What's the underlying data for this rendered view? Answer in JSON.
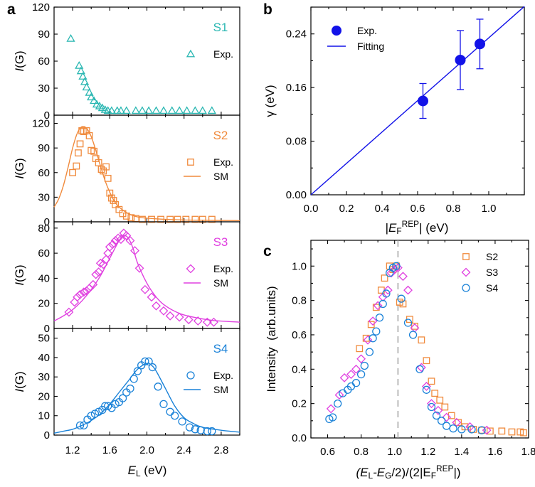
{
  "chart_data": [
    {
      "panel": "a",
      "panel_label": "a",
      "type": "scatter",
      "sample": "S1",
      "label": "S1",
      "label_color": "#2ab7b2",
      "xlabel_main": "E",
      "xlabel_sub": "L",
      "xlabel_unit": " (eV)",
      "ylabel_italic": "I",
      "ylabel_rest": "(G)",
      "xlim": [
        1.0,
        3.0
      ],
      "ylim": [
        0,
        120
      ],
      "yticks": [
        "0",
        "30",
        "60",
        "90",
        "120"
      ],
      "xticks": [
        "1.2",
        "1.6",
        "2.0",
        "2.4",
        "2.8"
      ],
      "legend": [
        "Exp."
      ],
      "marker": "triangle",
      "color": "#2ab7b2",
      "exp": [
        [
          1.18,
          85
        ],
        [
          1.27,
          55
        ],
        [
          1.29,
          49
        ],
        [
          1.31,
          43
        ],
        [
          1.33,
          37
        ],
        [
          1.35,
          31
        ],
        [
          1.38,
          25
        ],
        [
          1.4,
          20
        ],
        [
          1.43,
          16
        ],
        [
          1.46,
          12
        ],
        [
          1.49,
          10
        ],
        [
          1.52,
          8
        ],
        [
          1.55,
          6
        ],
        [
          1.58,
          5
        ],
        [
          1.62,
          5
        ],
        [
          1.68,
          5
        ],
        [
          1.72,
          5
        ],
        [
          1.78,
          5
        ],
        [
          1.88,
          5
        ],
        [
          1.95,
          5
        ],
        [
          2.02,
          5
        ],
        [
          2.1,
          5
        ],
        [
          2.18,
          5
        ],
        [
          2.27,
          5
        ],
        [
          2.35,
          5
        ],
        [
          2.43,
          5
        ],
        [
          2.52,
          5
        ],
        [
          2.6,
          5
        ],
        [
          2.7,
          5
        ]
      ],
      "sm": []
    },
    {
      "panel": "a",
      "type": "scatter",
      "sample": "S2",
      "label": "S2",
      "label_color": "#f08a3c",
      "xlim": [
        1.0,
        3.0
      ],
      "ylim": [
        0,
        130
      ],
      "yticks": [
        "0",
        "30",
        "60",
        "90",
        "120"
      ],
      "legend": [
        "Exp.",
        "SM"
      ],
      "marker": "square",
      "color": "#f08a3c",
      "exp": [
        [
          1.2,
          60
        ],
        [
          1.24,
          68
        ],
        [
          1.26,
          84
        ],
        [
          1.28,
          95
        ],
        [
          1.3,
          111
        ],
        [
          1.32,
          110
        ],
        [
          1.35,
          111
        ],
        [
          1.38,
          105
        ],
        [
          1.4,
          87
        ],
        [
          1.43,
          86
        ],
        [
          1.45,
          77
        ],
        [
          1.48,
          72
        ],
        [
          1.51,
          64
        ],
        [
          1.53,
          62
        ],
        [
          1.56,
          67
        ],
        [
          1.58,
          53
        ],
        [
          1.6,
          35
        ],
        [
          1.62,
          29
        ],
        [
          1.64,
          26
        ],
        [
          1.66,
          21
        ],
        [
          1.7,
          15
        ],
        [
          1.74,
          10
        ],
        [
          1.78,
          7
        ],
        [
          1.83,
          5
        ],
        [
          1.88,
          4
        ],
        [
          1.95,
          3
        ],
        [
          2.05,
          3
        ],
        [
          2.15,
          3
        ],
        [
          2.25,
          3
        ],
        [
          2.33,
          3
        ],
        [
          2.42,
          3
        ],
        [
          2.52,
          3
        ],
        [
          2.6,
          3
        ],
        [
          2.7,
          3
        ]
      ],
      "sm": [
        [
          1.0,
          18
        ],
        [
          1.05,
          28
        ],
        [
          1.1,
          44
        ],
        [
          1.15,
          66
        ],
        [
          1.2,
          90
        ],
        [
          1.25,
          108
        ],
        [
          1.3,
          116
        ],
        [
          1.35,
          114
        ],
        [
          1.4,
          104
        ],
        [
          1.45,
          87
        ],
        [
          1.5,
          68
        ],
        [
          1.55,
          50
        ],
        [
          1.6,
          36
        ],
        [
          1.65,
          25
        ],
        [
          1.7,
          18
        ],
        [
          1.8,
          10
        ],
        [
          1.9,
          6
        ],
        [
          2.0,
          4.5
        ],
        [
          2.2,
          3
        ],
        [
          2.5,
          2
        ],
        [
          3.0,
          1.5
        ]
      ]
    },
    {
      "panel": "a",
      "type": "scatter",
      "sample": "S3",
      "label": "S3",
      "label_color": "#e040e0",
      "xlim": [
        1.0,
        3.0
      ],
      "ylim": [
        0,
        85
      ],
      "yticks": [
        "0",
        "20",
        "40",
        "60",
        "80"
      ],
      "legend": [
        "Exp.",
        "SM"
      ],
      "marker": "diamond",
      "color": "#e040e0",
      "exp": [
        [
          1.16,
          13
        ],
        [
          1.22,
          21
        ],
        [
          1.25,
          25
        ],
        [
          1.28,
          27
        ],
        [
          1.32,
          29
        ],
        [
          1.35,
          30
        ],
        [
          1.38,
          32
        ],
        [
          1.42,
          35
        ],
        [
          1.45,
          43
        ],
        [
          1.48,
          45
        ],
        [
          1.5,
          52
        ],
        [
          1.53,
          51
        ],
        [
          1.56,
          55
        ],
        [
          1.58,
          60
        ],
        [
          1.6,
          65
        ],
        [
          1.63,
          67
        ],
        [
          1.66,
          70
        ],
        [
          1.69,
          72
        ],
        [
          1.72,
          71
        ],
        [
          1.75,
          76
        ],
        [
          1.78,
          74
        ],
        [
          1.82,
          70
        ],
        [
          1.87,
          62
        ],
        [
          1.92,
          48
        ],
        [
          1.98,
          31
        ],
        [
          2.05,
          25
        ],
        [
          2.1,
          18
        ],
        [
          2.18,
          14
        ],
        [
          2.25,
          10
        ],
        [
          2.35,
          9
        ],
        [
          2.45,
          7
        ],
        [
          2.55,
          6
        ],
        [
          2.65,
          5
        ],
        [
          2.72,
          5
        ]
      ],
      "sm": [
        [
          1.0,
          6
        ],
        [
          1.1,
          10
        ],
        [
          1.2,
          15
        ],
        [
          1.3,
          22
        ],
        [
          1.4,
          31
        ],
        [
          1.5,
          42
        ],
        [
          1.6,
          56
        ],
        [
          1.7,
          70
        ],
        [
          1.75,
          74
        ],
        [
          1.8,
          72
        ],
        [
          1.85,
          64
        ],
        [
          1.9,
          52
        ],
        [
          2.0,
          36
        ],
        [
          2.1,
          25
        ],
        [
          2.2,
          18
        ],
        [
          2.35,
          12
        ],
        [
          2.5,
          9
        ],
        [
          2.7,
          6.5
        ],
        [
          3.0,
          5
        ]
      ]
    },
    {
      "panel": "a",
      "type": "scatter",
      "sample": "S4",
      "label": "S4",
      "label_color": "#1a82d8",
      "xlim": [
        1.0,
        3.0
      ],
      "ylim": [
        0,
        55
      ],
      "yticks": [
        "0",
        "10",
        "20",
        "30",
        "40",
        "50"
      ],
      "legend": [
        "Exp.",
        "SM"
      ],
      "marker": "circle",
      "color": "#1a82d8",
      "exp": [
        [
          1.28,
          5
        ],
        [
          1.32,
          5
        ],
        [
          1.36,
          8
        ],
        [
          1.4,
          10
        ],
        [
          1.44,
          11
        ],
        [
          1.48,
          12
        ],
        [
          1.52,
          13
        ],
        [
          1.55,
          15
        ],
        [
          1.58,
          15
        ],
        [
          1.62,
          14
        ],
        [
          1.66,
          16
        ],
        [
          1.7,
          17
        ],
        [
          1.74,
          19
        ],
        [
          1.78,
          22
        ],
        [
          1.82,
          24
        ],
        [
          1.86,
          29
        ],
        [
          1.9,
          33
        ],
        [
          1.94,
          36
        ],
        [
          1.98,
          38
        ],
        [
          2.02,
          38
        ],
        [
          2.06,
          35
        ],
        [
          2.12,
          25
        ],
        [
          2.18,
          16
        ],
        [
          2.25,
          12
        ],
        [
          2.3,
          10
        ],
        [
          2.38,
          7
        ],
        [
          2.46,
          4
        ],
        [
          2.52,
          3
        ],
        [
          2.58,
          2.5
        ],
        [
          2.65,
          2
        ],
        [
          2.7,
          2
        ]
      ],
      "sm": [
        [
          1.0,
          1
        ],
        [
          1.1,
          2
        ],
        [
          1.2,
          3
        ],
        [
          1.3,
          5
        ],
        [
          1.4,
          7.5
        ],
        [
          1.5,
          11
        ],
        [
          1.6,
          16
        ],
        [
          1.7,
          22
        ],
        [
          1.8,
          28
        ],
        [
          1.9,
          34
        ],
        [
          2.0,
          37
        ],
        [
          2.05,
          36
        ],
        [
          2.1,
          33
        ],
        [
          2.2,
          24
        ],
        [
          2.3,
          15
        ],
        [
          2.4,
          9
        ],
        [
          2.5,
          6
        ],
        [
          2.6,
          4
        ],
        [
          2.8,
          2.5
        ],
        [
          3.0,
          1.5
        ]
      ]
    },
    {
      "panel": "b",
      "panel_label": "b",
      "type": "scatter",
      "xlabel_parts": [
        "|",
        "E",
        "F",
        "REP",
        "| (eV)"
      ],
      "ylabel": "γ (eV)",
      "xlim": [
        0.0,
        1.2
      ],
      "ylim": [
        0.0,
        0.28
      ],
      "xticks": [
        "0.0",
        "0.2",
        "0.4",
        "0.6",
        "0.8",
        "1.0"
      ],
      "yticks": [
        "0.00",
        "0.08",
        "0.16",
        "0.24"
      ],
      "legend": [
        "Exp.",
        "Fitting"
      ],
      "color": "#1212e8",
      "points": [
        {
          "x": 0.63,
          "y": 0.14,
          "err": 0.026
        },
        {
          "x": 0.84,
          "y": 0.201,
          "err": 0.044
        },
        {
          "x": 0.95,
          "y": 0.225,
          "err": 0.037
        }
      ],
      "fit": [
        [
          0.0,
          0.0
        ],
        [
          1.2,
          0.281
        ]
      ]
    },
    {
      "panel": "c",
      "panel_label": "c",
      "type": "scatter",
      "xlabel": "(E_L - E_G/2)/(2|E_F^REP|)",
      "xlabel_parts": [
        "(E",
        "L",
        "-E",
        "G",
        "/2)/(2|E",
        "F",
        "REP",
        "|)"
      ],
      "ylabel": "Intensity  (arb.units)",
      "xlim": [
        0.5,
        1.8
      ],
      "ylim": [
        0.0,
        1.15
      ],
      "xticks": [
        "0.6",
        "0.8",
        "1.0",
        "1.2",
        "1.4",
        "1.6",
        "1.8"
      ],
      "yticks": [
        "0.0",
        "0.2",
        "0.4",
        "0.6",
        "0.8",
        "1.0"
      ],
      "vline_x": 1.02,
      "series": [
        {
          "name": "S2",
          "marker": "square",
          "color": "#f08a3c",
          "points": [
            [
              0.79,
              0.52
            ],
            [
              0.83,
              0.58
            ],
            [
              0.86,
              0.66
            ],
            [
              0.89,
              0.76
            ],
            [
              0.92,
              0.86
            ],
            [
              0.94,
              0.93
            ],
            [
              0.97,
              1.0
            ],
            [
              0.99,
              0.98
            ],
            [
              1.01,
              1.0
            ],
            [
              1.03,
              0.79
            ],
            [
              1.05,
              0.78
            ],
            [
              1.09,
              0.69
            ],
            [
              1.12,
              0.65
            ],
            [
              1.16,
              0.57
            ],
            [
              1.19,
              0.45
            ],
            [
              1.22,
              0.33
            ],
            [
              1.24,
              0.26
            ],
            [
              1.27,
              0.22
            ],
            [
              1.3,
              0.18
            ],
            [
              1.34,
              0.13
            ],
            [
              1.38,
              0.09
            ],
            [
              1.42,
              0.065
            ],
            [
              1.47,
              0.05
            ],
            [
              1.52,
              0.045
            ],
            [
              1.57,
              0.04
            ],
            [
              1.64,
              0.04
            ],
            [
              1.7,
              0.035
            ],
            [
              1.75,
              0.035
            ],
            [
              1.77,
              0.03
            ]
          ]
        },
        {
          "name": "S3",
          "marker": "diamond",
          "color": "#e040e0",
          "points": [
            [
              0.62,
              0.17
            ],
            [
              0.67,
              0.25
            ],
            [
              0.7,
              0.35
            ],
            [
              0.74,
              0.37
            ],
            [
              0.77,
              0.4
            ],
            [
              0.8,
              0.46
            ],
            [
              0.84,
              0.57
            ],
            [
              0.87,
              0.68
            ],
            [
              0.9,
              0.77
            ],
            [
              0.93,
              0.82
            ],
            [
              0.96,
              0.86
            ],
            [
              0.98,
              0.96
            ],
            [
              1.0,
              0.98
            ],
            [
              1.02,
              0.99
            ],
            [
              1.05,
              0.94
            ],
            [
              1.08,
              0.86
            ],
            [
              1.12,
              0.64
            ],
            [
              1.16,
              0.41
            ],
            [
              1.19,
              0.3
            ],
            [
              1.22,
              0.2
            ],
            [
              1.26,
              0.16
            ],
            [
              1.31,
              0.12
            ],
            [
              1.37,
              0.09
            ],
            [
              1.45,
              0.065
            ],
            [
              1.55,
              0.045
            ]
          ]
        },
        {
          "name": "S4",
          "marker": "circle",
          "color": "#1a82d8",
          "points": [
            [
              0.61,
              0.11
            ],
            [
              0.63,
              0.12
            ],
            [
              0.66,
              0.2
            ],
            [
              0.69,
              0.26
            ],
            [
              0.72,
              0.28
            ],
            [
              0.74,
              0.3
            ],
            [
              0.77,
              0.32
            ],
            [
              0.8,
              0.37
            ],
            [
              0.82,
              0.42
            ],
            [
              0.85,
              0.5
            ],
            [
              0.87,
              0.58
            ],
            [
              0.89,
              0.62
            ],
            [
              0.91,
              0.7
            ],
            [
              0.93,
              0.78
            ],
            [
              0.95,
              0.84
            ],
            [
              0.97,
              0.96
            ],
            [
              0.99,
              0.99
            ],
            [
              1.01,
              1.0
            ],
            [
              1.04,
              0.81
            ],
            [
              1.08,
              0.67
            ],
            [
              1.11,
              0.6
            ],
            [
              1.15,
              0.4
            ],
            [
              1.19,
              0.28
            ],
            [
              1.22,
              0.18
            ],
            [
              1.25,
              0.13
            ],
            [
              1.28,
              0.1
            ],
            [
              1.31,
              0.07
            ],
            [
              1.35,
              0.055
            ],
            [
              1.4,
              0.05
            ],
            [
              1.46,
              0.05
            ],
            [
              1.52,
              0.045
            ]
          ]
        }
      ],
      "legend": [
        "S2",
        "S3",
        "S4"
      ]
    }
  ]
}
